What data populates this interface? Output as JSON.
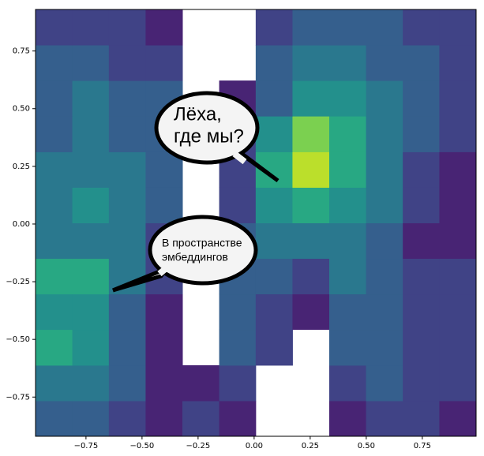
{
  "chart_data": {
    "type": "hist2d",
    "cmap": "viridis",
    "clim": [
      0,
      10
    ],
    "xlim": [
      -0.975,
      0.99
    ],
    "ylim": [
      -0.92,
      0.93
    ],
    "xbins": [
      -0.975,
      -0.811,
      -0.648,
      -0.484,
      -0.32,
      -0.156,
      0.007,
      0.171,
      0.335,
      0.499,
      0.663,
      0.826,
      0.99
    ],
    "ybins": [
      -0.92,
      -0.766,
      -0.612,
      -0.457,
      -0.303,
      -0.149,
      0.005,
      0.159,
      0.313,
      0.468,
      0.622,
      0.776,
      0.93
    ],
    "z": [
      [
        3,
        3,
        2,
        1,
        2,
        1,
        null,
        null,
        1,
        2,
        2,
        1
      ],
      [
        4,
        4,
        3,
        1,
        1,
        2,
        null,
        null,
        2,
        3,
        2,
        2
      ],
      [
        6,
        5,
        3,
        1,
        null,
        3,
        2,
        null,
        3,
        3,
        2,
        2
      ],
      [
        5,
        5,
        3,
        1,
        null,
        3,
        2,
        1,
        3,
        3,
        2,
        2
      ],
      [
        6,
        6,
        4,
        2,
        null,
        3,
        3,
        2,
        4,
        3,
        2,
        2
      ],
      [
        4,
        4,
        4,
        2,
        null,
        3,
        4,
        4,
        4,
        3,
        1,
        1
      ],
      [
        4,
        5,
        4,
        3,
        null,
        2,
        5,
        6,
        5,
        4,
        2,
        1
      ],
      [
        4,
        4,
        4,
        3,
        null,
        2,
        6,
        9,
        6,
        4,
        2,
        1
      ],
      [
        3,
        4,
        3,
        3,
        null,
        2,
        5,
        8,
        6,
        4,
        3,
        2
      ],
      [
        3,
        4,
        3,
        3,
        null,
        1,
        3,
        5,
        5,
        4,
        3,
        2
      ],
      [
        3,
        3,
        2,
        2,
        null,
        null,
        3,
        4,
        4,
        3,
        3,
        2
      ],
      [
        2,
        2,
        2,
        1,
        null,
        null,
        2,
        3,
        3,
        3,
        2,
        2
      ]
    ],
    "xticks": [
      {
        "value": -0.75,
        "label": "−0.75"
      },
      {
        "value": -0.5,
        "label": "−0.50"
      },
      {
        "value": -0.25,
        "label": "−0.25"
      },
      {
        "value": 0,
        "label": "0.00"
      },
      0.25,
      {
        "value": 0.5,
        "label": "0.50"
      },
      0.75
    ],
    "yticks": [
      {
        "value": -0.75,
        "label": "−0.75"
      },
      {
        "value": -0.5,
        "label": "−0.50"
      },
      {
        "value": -0.25,
        "label": "−0.25"
      },
      {
        "value": 0,
        "label": "0.00"
      },
      0.25,
      {
        "value": 0.5,
        "label": "0.50"
      },
      0.75
    ],
    "annotations": [
      {
        "lines": [
          "Лёха,",
          "где мы?"
        ]
      },
      {
        "lines": [
          "В пространстве",
          "эмбеддингов"
        ]
      }
    ]
  }
}
